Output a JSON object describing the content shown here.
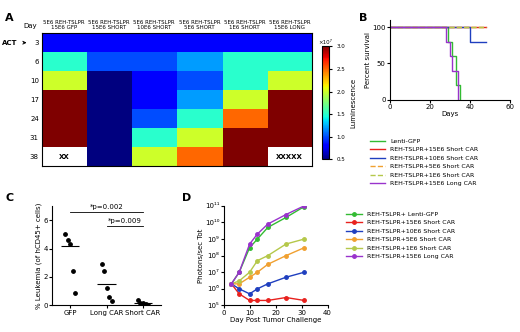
{
  "chart_data": [
    {
      "type": "heatmap",
      "panel": "A",
      "row_title": "Day",
      "rows": [
        3,
        6,
        10,
        17,
        24,
        31,
        38
      ],
      "columns": [
        "5E6 REH-TSLPR\n15E6 GFP",
        "5E6 REH-TSLPR\n15E6 SHORT",
        "5E6 REH-TSLPR\n10E6 SHORT",
        "5E6 REH-TSLPR\n5E6 SHORT",
        "5E6 REH-TSLPR\n1E6 SHORT",
        "5E6 REH-TSLPR\n15E6 LONG"
      ],
      "cells": [
        [
          0.8,
          0.8,
          0.8,
          0.8,
          0.8,
          0.8
        ],
        [
          1.5,
          1.0,
          1.0,
          1.2,
          1.5,
          1.5
        ],
        [
          2.0,
          0.5,
          0.8,
          1.0,
          1.5,
          2.0
        ],
        [
          3.0,
          0.5,
          0.8,
          1.2,
          2.0,
          3.0
        ],
        [
          3.0,
          0.5,
          1.0,
          1.5,
          2.5,
          3.0
        ],
        [
          3.0,
          0.5,
          1.5,
          2.0,
          3.0,
          3.0
        ],
        [
          null,
          0.5,
          2.0,
          2.5,
          3.0,
          null
        ]
      ],
      "cell_texts": [
        {
          "row": 38,
          "column": 0,
          "text": "XX"
        },
        {
          "row": 38,
          "column": 5,
          "text": "XXXXX"
        }
      ],
      "marker": {
        "text": "ACT",
        "row": 3
      },
      "colorbar": {
        "label": "Luminescence",
        "title": "×10⁷",
        "range": [
          0.5,
          3.0
        ],
        "ticks": [
          0.5,
          1.0,
          1.5,
          2.0,
          2.5,
          3.0
        ]
      }
    },
    {
      "type": "line",
      "panel": "B",
      "x_label": "Days",
      "y_label": "Percent survival",
      "xlim": [
        0,
        60
      ],
      "xticks": [
        0,
        20,
        40,
        60
      ],
      "ylim": [
        0,
        110
      ],
      "yticks": [
        0,
        50,
        100
      ],
      "legend": "upper left",
      "series": [
        {
          "name": "Lenti-GFP",
          "color": "#33bb33",
          "line_style": "solid",
          "x": [
            0,
            29,
            31,
            33,
            35
          ],
          "values": [
            100,
            80,
            60,
            20,
            0
          ]
        },
        {
          "name": "REH-TSLPR+15E6 Short CAR",
          "color": "#e8211d",
          "line_style": "solid",
          "x": [
            0,
            48
          ],
          "values": [
            100,
            100
          ]
        },
        {
          "name": "REH-TSLPR+10E6 Short CAR",
          "color": "#1f3fbf",
          "line_style": "solid",
          "x": [
            0,
            40,
            48
          ],
          "values": [
            100,
            80,
            80
          ]
        },
        {
          "name": "REH-TSLPR+5E6 Short CAR",
          "color": "#f0a030",
          "line_style": "dashed",
          "x": [
            0,
            48
          ],
          "values": [
            100,
            100
          ]
        },
        {
          "name": "REH-TSLPR+1E6 Short CAR",
          "color": "#b5c84a",
          "line_style": "dashed",
          "x": [
            0,
            48
          ],
          "values": [
            100,
            100
          ]
        },
        {
          "name": "REH-TSLPR+15E6 Long CAR",
          "color": "#9933cc",
          "line_style": "solid",
          "x": [
            0,
            28,
            30,
            31,
            34
          ],
          "values": [
            100,
            80,
            60,
            40,
            0
          ]
        }
      ]
    },
    {
      "type": "scatter",
      "panel": "C",
      "y_label": "% Leukemia (of hCD45+ cells)",
      "categories": [
        "GFP",
        "Long CAR",
        "Short CAR"
      ],
      "values": [
        [
          5.0,
          4.6,
          4.3,
          2.4,
          0.9
        ],
        [
          2.9,
          2.4,
          1.2,
          0.6,
          0.3
        ],
        [
          0.4,
          0.2,
          0.15,
          0.1,
          0.05
        ]
      ],
      "means": [
        4.2,
        1.5,
        0.2
      ],
      "color": "#000000",
      "ylim": [
        0,
        7
      ],
      "yticks": [
        0,
        2,
        4,
        6
      ],
      "annotations": [
        {
          "text": "*p=0.002",
          "from": "GFP",
          "to": "Short CAR",
          "y": 6.6
        },
        {
          "text": "*p=0.009",
          "from": "Long CAR",
          "to": "Short CAR",
          "y": 5.6
        }
      ]
    },
    {
      "type": "line",
      "panel": "D",
      "x_label": "Day Post Tumor Challenge",
      "y_label": "Photons/sec Tot",
      "log": "y",
      "marker": "circle",
      "legend": "upper left",
      "xlim": [
        0,
        40
      ],
      "xticks": [
        0,
        10,
        20,
        30,
        40
      ],
      "ylim": [
        100000.0,
        100000000000.0
      ],
      "yticks": [
        {
          "value": 100000.0,
          "label": "10⁵"
        },
        {
          "value": 1000000.0,
          "label": "10⁶"
        },
        {
          "value": 10000000.0,
          "label": "10⁷"
        },
        {
          "value": 100000000.0,
          "label": "10⁸"
        },
        {
          "value": 1000000000.0,
          "label": "10⁹"
        },
        {
          "value": 10000000000.0,
          "label": "10¹⁰"
        },
        {
          "value": 100000000000.0,
          "label": "10¹¹"
        }
      ],
      "x": [
        3,
        6,
        10,
        13,
        17,
        24,
        31
      ],
      "series": [
        {
          "name": "REH-TSLPR+ Lenti-GFP",
          "color": "#33bb33",
          "values": [
            2000000.0,
            10000000.0,
            300000000.0,
            1000000000.0,
            5000000000.0,
            20000000000.0,
            90000000000.0
          ]
        },
        {
          "name": "REH-TSLPR+15E6 Short CAR",
          "color": "#e8211d",
          "values": [
            2000000.0,
            500000.0,
            200000.0,
            200000.0,
            200000.0,
            300000.0,
            200000.0
          ]
        },
        {
          "name": "REH-TSLPR+10E6 Short CAR",
          "color": "#1f3fbf",
          "values": [
            2000000.0,
            1000000.0,
            500000.0,
            1000000.0,
            2000000.0,
            5000000.0,
            10000000.0
          ]
        },
        {
          "name": "REH-TSLPR+5E6 Short CAR",
          "color": "#f0a030",
          "values": [
            2000000.0,
            2000000.0,
            5000000.0,
            10000000.0,
            30000000.0,
            100000000.0,
            300000000.0
          ]
        },
        {
          "name": "REH-TSLPR+1E6 Short CAR",
          "color": "#b5c84a",
          "values": [
            2000000.0,
            3000000.0,
            10000000.0,
            50000000.0,
            100000000.0,
            500000000.0,
            1000000000.0
          ]
        },
        {
          "name": "REH-TSLPR+15E6 Long CAR",
          "color": "#9933cc",
          "values": [
            2000000.0,
            10000000.0,
            500000000.0,
            2000000000.0,
            8000000000.0,
            30000000000.0,
            100000000000.0
          ]
        }
      ]
    }
  ]
}
